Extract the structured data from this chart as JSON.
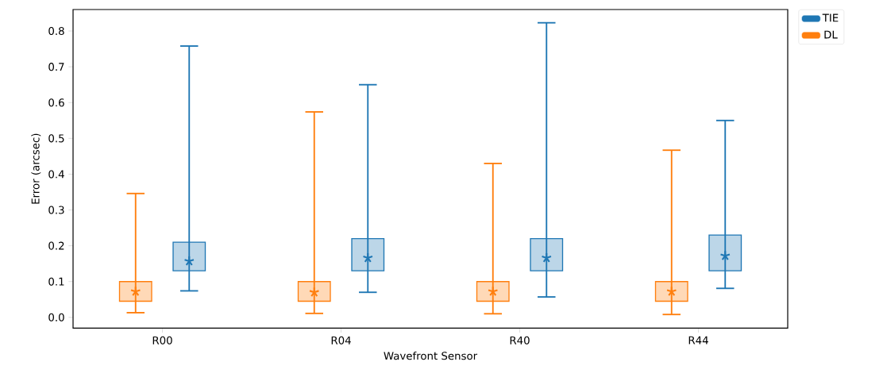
{
  "chart_data": {
    "type": "box",
    "xlabel": "Wavefront Sensor",
    "ylabel": "Error (arcsec)",
    "categories": [
      "R00",
      "R04",
      "R40",
      "R44"
    ],
    "ylim": [
      -0.03,
      0.86
    ],
    "yticks": [
      {
        "value": 0,
        "label": "0.0"
      },
      {
        "value": 0.1,
        "label": "0.1"
      },
      {
        "value": 0.2,
        "label": "0.2"
      },
      {
        "value": 0.3,
        "label": "0.3"
      },
      {
        "value": 0.4,
        "label": "0.4"
      },
      {
        "value": 0.5,
        "label": "0.5"
      },
      {
        "value": 0.6,
        "label": "0.6"
      },
      {
        "value": 0.7,
        "label": "0.7"
      },
      {
        "value": 0.8,
        "label": "0.8"
      }
    ],
    "legend": "top right",
    "series": [
      {
        "name": "TIE",
        "color": "#1f77b4",
        "boxes": [
          {
            "low": 0.074,
            "q1": 0.13,
            "median": 0.157,
            "q3": 0.21,
            "high": 0.758
          },
          {
            "low": 0.07,
            "q1": 0.13,
            "median": 0.166,
            "q3": 0.22,
            "high": 0.65
          },
          {
            "low": 0.057,
            "q1": 0.13,
            "median": 0.166,
            "q3": 0.22,
            "high": 0.823
          },
          {
            "low": 0.081,
            "q1": 0.13,
            "median": 0.172,
            "q3": 0.23,
            "high": 0.55
          }
        ]
      },
      {
        "name": "DL",
        "color": "#ff7f0e",
        "boxes": [
          {
            "low": 0.013,
            "q1": 0.045,
            "median": 0.072,
            "q3": 0.1,
            "high": 0.346
          },
          {
            "low": 0.011,
            "q1": 0.045,
            "median": 0.07,
            "q3": 0.1,
            "high": 0.574
          },
          {
            "low": 0.01,
            "q1": 0.045,
            "median": 0.072,
            "q3": 0.1,
            "high": 0.43
          },
          {
            "low": 0.008,
            "q1": 0.045,
            "median": 0.072,
            "q3": 0.1,
            "high": 0.467
          }
        ]
      }
    ]
  }
}
